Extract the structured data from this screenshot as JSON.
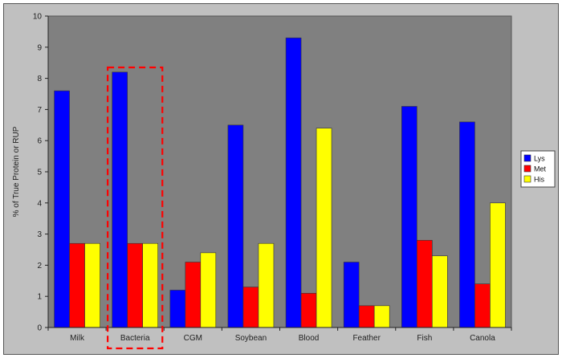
{
  "chart_data": {
    "type": "bar",
    "title": "",
    "xlabel": "",
    "ylabel": "% of True Protein or RUP",
    "ylim": [
      0,
      10
    ],
    "yticks": [
      "0",
      "1",
      "2",
      "3",
      "4",
      "5",
      "6",
      "7",
      "8",
      "9",
      "10"
    ],
    "categories": [
      "Milk",
      "Bacteria",
      "CGM",
      "Soybean",
      "Blood",
      "Feather",
      "Fish",
      "Canola"
    ],
    "series": [
      {
        "name": "Lys",
        "color": "#0000ff",
        "values": [
          7.6,
          8.2,
          1.2,
          6.5,
          9.3,
          2.1,
          7.1,
          6.6
        ]
      },
      {
        "name": "Met",
        "color": "#ff0000",
        "values": [
          2.7,
          2.7,
          2.1,
          1.3,
          1.1,
          0.7,
          2.8,
          1.4
        ]
      },
      {
        "name": "His",
        "color": "#ffff00",
        "values": [
          2.7,
          2.7,
          2.4,
          2.7,
          6.4,
          0.7,
          2.3,
          4.0
        ]
      }
    ],
    "grid": false,
    "legend_position": "right",
    "highlight_category": "Bacteria",
    "highlight_color": "#ff0000",
    "plot_background": "#808080"
  }
}
